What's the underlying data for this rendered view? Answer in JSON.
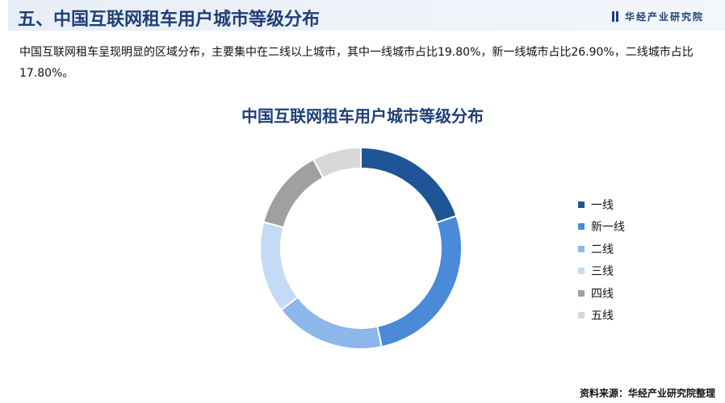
{
  "header": {
    "title": "五、中国互联网租车用户城市等级分布",
    "brand": "华经产业研究院"
  },
  "description": "中国互联网租车呈现明显的区域分布，主要集中在二线以上城市，其中一线城市占比19.80%，新一线城市占比26.90%，二线城市占比17.80%。",
  "source": "资料来源：华经产业研究院整理",
  "chart_data": {
    "type": "pie",
    "donut": true,
    "title": "中国互联网租车用户城市等级分布",
    "legend_position": "right",
    "categories": [
      "一线",
      "新一线",
      "二线",
      "三线",
      "四线",
      "五线"
    ],
    "values": [
      19.8,
      26.9,
      17.8,
      14.7,
      13.0,
      7.8
    ],
    "colors": [
      "#1f5496",
      "#4a8ad8",
      "#8db6ea",
      "#c5daf5",
      "#a0a0a0",
      "#d8d8d8"
    ]
  }
}
